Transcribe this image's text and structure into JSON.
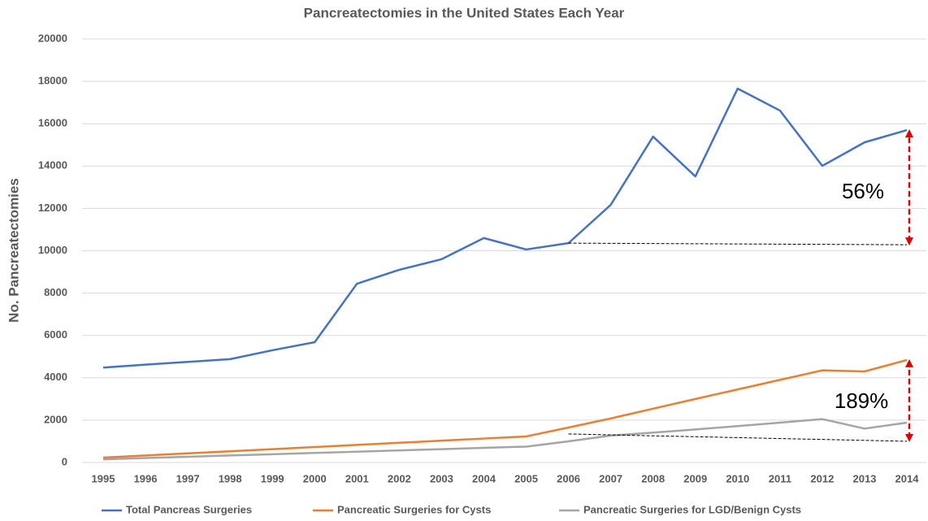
{
  "chart_data": {
    "type": "line",
    "title": "Pancreatectomies in the United States Each Year",
    "y_label": "No. Pancreatectomies",
    "categories": [
      "1995",
      "1996",
      "1997",
      "1998",
      "1999",
      "2000",
      "2001",
      "2002",
      "2003",
      "2004",
      "2005",
      "2006",
      "2007",
      "2008",
      "2009",
      "2010",
      "2011",
      "2012",
      "2013",
      "2014"
    ],
    "series": [
      {
        "name": "Total Pancreas Surgeries",
        "color": "#4472c4",
        "values": [
          4480,
          4620,
          4750,
          4880,
          5300,
          5680,
          8445,
          9100,
          9600,
          10600,
          10060,
          10360,
          12170,
          15390,
          13510,
          17660,
          16620,
          14010,
          15120,
          15700
        ]
      },
      {
        "name": "Pancreatic Surgeries for Cysts",
        "color": "#ed7d31",
        "values": [
          230,
          330,
          430,
          530,
          630,
          730,
          830,
          930,
          1030,
          1130,
          1230,
          1650,
          2080,
          2540,
          3000,
          3450,
          3900,
          4350,
          4300,
          4840
        ]
      },
      {
        "name": "Pancreatic Surgeries for LGD/Benign Cysts",
        "color": "#a5a5a5",
        "values": [
          150,
          210,
          270,
          330,
          390,
          450,
          510,
          570,
          630,
          690,
          750,
          1000,
          1270,
          1410,
          1560,
          1720,
          1880,
          2050,
          1600,
          1880
        ]
      }
    ],
    "annotations": [
      "56%",
      "189%"
    ],
    "ylim": [
      0,
      20000
    ],
    "yticks": [
      0,
      2000,
      4000,
      6000,
      8000,
      10000,
      12000,
      14000,
      16000,
      18000,
      20000
    ],
    "grid": true
  }
}
